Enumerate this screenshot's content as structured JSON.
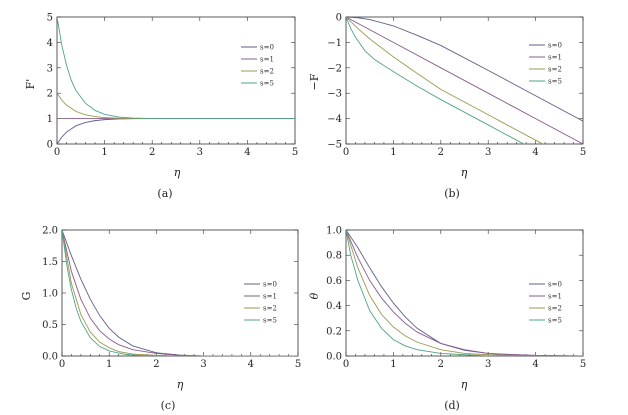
{
  "colors": {
    "s0": "#5e5f8c",
    "s1": "#8a5b8e",
    "s2": "#9c9a52",
    "s3": "#4fa386"
  },
  "chart_data": [
    {
      "id": "a",
      "type": "line",
      "caption": "(a)",
      "xlabel": "η",
      "ylabel": "F'",
      "xlim": [
        0,
        5
      ],
      "ylim": [
        0,
        5
      ],
      "xticks": [
        "0",
        "1",
        "2",
        "3",
        "4",
        "5"
      ],
      "yticks": [
        "0",
        "1",
        "2",
        "3",
        "4",
        "5"
      ],
      "legend_position": "right",
      "series": [
        {
          "name": "s=0",
          "x": [
            0,
            0.1,
            0.2,
            0.4,
            0.6,
            0.8,
            1.0,
            1.3,
            1.6,
            2.0,
            3,
            4,
            5
          ],
          "y": [
            0.0,
            0.27,
            0.47,
            0.72,
            0.85,
            0.92,
            0.96,
            0.985,
            0.995,
            1.0,
            1.0,
            1.0,
            1.0
          ]
        },
        {
          "name": "s=1",
          "x": [
            0,
            0.2,
            0.5,
            1.0,
            1.5,
            2.0,
            3,
            4,
            5
          ],
          "y": [
            1.0,
            1.0,
            1.0,
            1.0,
            1.0,
            1.0,
            1.0,
            1.0,
            1.0
          ]
        },
        {
          "name": "s=2",
          "x": [
            0,
            0.1,
            0.2,
            0.4,
            0.6,
            0.8,
            1.0,
            1.3,
            1.6,
            2.0,
            3,
            4,
            5
          ],
          "y": [
            2.0,
            1.73,
            1.53,
            1.28,
            1.15,
            1.08,
            1.04,
            1.015,
            1.005,
            1.0,
            1.0,
            1.0,
            1.0
          ]
        },
        {
          "name": "s=5",
          "x": [
            0,
            0.1,
            0.2,
            0.3,
            0.4,
            0.6,
            0.8,
            1.0,
            1.3,
            1.6,
            2.0,
            3,
            4,
            5
          ],
          "y": [
            5.0,
            3.9,
            3.1,
            2.5,
            2.1,
            1.6,
            1.32,
            1.17,
            1.06,
            1.02,
            1.0,
            1.0,
            1.0,
            1.0
          ]
        }
      ]
    },
    {
      "id": "b",
      "type": "line",
      "caption": "(b)",
      "xlabel": "η",
      "ylabel": "−F",
      "xlim": [
        0,
        5
      ],
      "ylim": [
        -5,
        0
      ],
      "xticks": [
        "0",
        "1",
        "2",
        "3",
        "4",
        "5"
      ],
      "yticks": [
        "0",
        "−1",
        "−2",
        "−3",
        "−4",
        "−5"
      ],
      "legend_position": "right",
      "series": [
        {
          "name": "s=0",
          "x": [
            0,
            0.25,
            0.5,
            1.0,
            1.5,
            2.0,
            3,
            4,
            5
          ],
          "y": [
            0.0,
            -0.03,
            -0.1,
            -0.35,
            -0.72,
            -1.12,
            -2.1,
            -3.1,
            -4.1
          ]
        },
        {
          "name": "s=1",
          "x": [
            0,
            1,
            2,
            3,
            4,
            5
          ],
          "y": [
            0.0,
            -1.0,
            -2.0,
            -3.0,
            -4.0,
            -5.0
          ]
        },
        {
          "name": "s=2",
          "x": [
            0,
            0.25,
            0.5,
            1.0,
            1.5,
            2.0,
            3,
            4,
            5
          ],
          "y": [
            0.0,
            -0.45,
            -0.86,
            -1.57,
            -2.22,
            -2.85,
            -3.85,
            -4.85,
            -5.85
          ]
        },
        {
          "name": "s=5",
          "x": [
            0,
            0.1,
            0.2,
            0.4,
            0.6,
            1.0,
            1.5,
            2.0,
            3,
            4,
            5
          ],
          "y": [
            0.0,
            -0.45,
            -0.8,
            -1.33,
            -1.67,
            -2.15,
            -2.72,
            -3.25,
            -4.25,
            -5.25,
            -6.25
          ]
        }
      ]
    },
    {
      "id": "c",
      "type": "line",
      "caption": "(c)",
      "xlabel": "η",
      "ylabel": "G",
      "xlim": [
        0,
        5
      ],
      "ylim": [
        0,
        2
      ],
      "xticks": [
        "0",
        "1",
        "2",
        "3",
        "4",
        "5"
      ],
      "yticks": [
        "0.0",
        "0.5",
        "1.0",
        "1.5",
        "2.0"
      ],
      "legend_position": "right",
      "series": [
        {
          "name": "s=0",
          "x": [
            0,
            0.2,
            0.4,
            0.6,
            0.8,
            1.0,
            1.2,
            1.5,
            2.0,
            2.5,
            3,
            4,
            5
          ],
          "y": [
            2.0,
            1.59,
            1.22,
            0.9,
            0.64,
            0.44,
            0.3,
            0.16,
            0.05,
            0.015,
            0.0,
            0.0,
            0.0
          ]
        },
        {
          "name": "s=1",
          "x": [
            0,
            0.2,
            0.4,
            0.6,
            0.8,
            1.0,
            1.2,
            1.5,
            2.0,
            2.5,
            3,
            5
          ],
          "y": [
            2.0,
            1.34,
            0.9,
            0.6,
            0.4,
            0.27,
            0.18,
            0.1,
            0.04,
            0.01,
            0.0,
            0.0
          ]
        },
        {
          "name": "s=2",
          "x": [
            0,
            0.2,
            0.4,
            0.6,
            0.8,
            1.0,
            1.2,
            1.5,
            2.0,
            2.5,
            3,
            5
          ],
          "y": [
            2.0,
            1.15,
            0.66,
            0.38,
            0.22,
            0.13,
            0.07,
            0.03,
            0.01,
            0.0,
            0.0,
            0.0
          ]
        },
        {
          "name": "s=5",
          "x": [
            0,
            0.1,
            0.2,
            0.3,
            0.4,
            0.6,
            0.8,
            1.0,
            1.3,
            1.6,
            2.0,
            3,
            5
          ],
          "y": [
            2.0,
            1.45,
            1.05,
            0.76,
            0.55,
            0.29,
            0.15,
            0.08,
            0.03,
            0.01,
            0.0,
            0.0,
            0.0
          ]
        }
      ]
    },
    {
      "id": "d",
      "type": "line",
      "caption": "(d)",
      "xlabel": "η",
      "ylabel": "θ",
      "xlim": [
        0,
        5
      ],
      "ylim": [
        0,
        1
      ],
      "xticks": [
        "0",
        "1",
        "2",
        "3",
        "4",
        "5"
      ],
      "yticks": [
        "0.0",
        "0.2",
        "0.4",
        "0.6",
        "0.8",
        "1.0"
      ],
      "legend_position": "right",
      "series": [
        {
          "name": "s=0",
          "x": [
            0,
            0.25,
            0.5,
            0.75,
            1.0,
            1.25,
            1.5,
            2.0,
            2.5,
            3,
            3.5,
            4,
            5
          ],
          "y": [
            1.0,
            0.86,
            0.7,
            0.55,
            0.42,
            0.31,
            0.22,
            0.1,
            0.045,
            0.02,
            0.008,
            0.003,
            0.0
          ]
        },
        {
          "name": "s=1",
          "x": [
            0,
            0.25,
            0.5,
            0.75,
            1.0,
            1.25,
            1.5,
            2.0,
            2.5,
            3,
            4,
            5
          ],
          "y": [
            1.0,
            0.78,
            0.6,
            0.46,
            0.35,
            0.26,
            0.19,
            0.1,
            0.05,
            0.02,
            0.005,
            0.0
          ]
        },
        {
          "name": "s=2",
          "x": [
            0,
            0.25,
            0.5,
            0.75,
            1.0,
            1.25,
            1.5,
            2.0,
            2.5,
            3,
            4,
            5
          ],
          "y": [
            1.0,
            0.7,
            0.48,
            0.33,
            0.23,
            0.16,
            0.11,
            0.05,
            0.02,
            0.01,
            0.0,
            0.0
          ]
        },
        {
          "name": "s=5",
          "x": [
            0,
            0.1,
            0.25,
            0.5,
            0.75,
            1.0,
            1.25,
            1.5,
            2.0,
            2.5,
            3,
            5
          ],
          "y": [
            1.0,
            0.8,
            0.6,
            0.36,
            0.22,
            0.13,
            0.08,
            0.05,
            0.02,
            0.01,
            0.0,
            0.0
          ]
        }
      ]
    }
  ]
}
